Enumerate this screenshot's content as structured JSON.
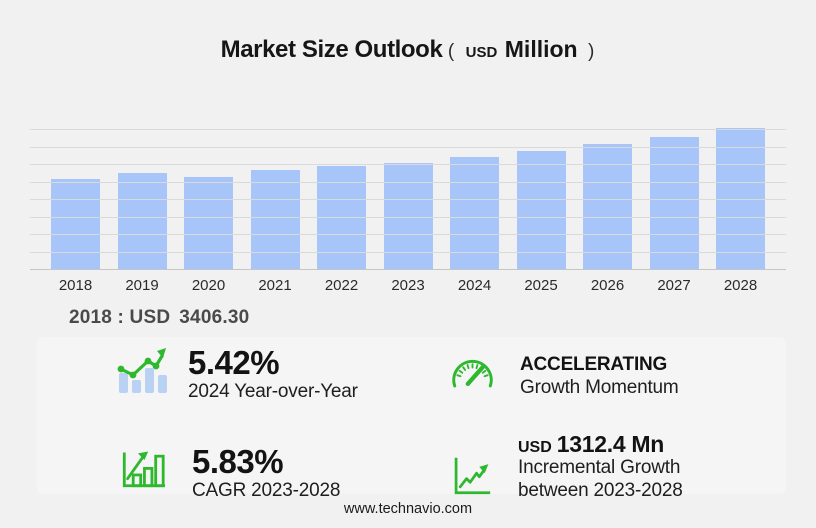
{
  "title": {
    "main": "Market Size Outlook",
    "open_paren": "(",
    "currency": "USD",
    "unit": "Million",
    "close_paren": ")"
  },
  "chart_data": {
    "type": "bar",
    "title": "Market Size Outlook (USD Million)",
    "xlabel": "",
    "ylabel": "USD Million",
    "categories": [
      "2018",
      "2019",
      "2020",
      "2021",
      "2022",
      "2023",
      "2024",
      "2025",
      "2026",
      "2027",
      "2028"
    ],
    "values": [
      3406.3,
      3600,
      3450,
      3715,
      3870,
      4005,
      4222,
      4455,
      4715,
      4990,
      5317
    ],
    "labeled_point": {
      "category": "2018",
      "value": 3406.3
    },
    "ylim": [
      0,
      5500
    ],
    "grid": true,
    "gridline_count": 8,
    "bar_color": "#a8c5fa",
    "legend": false
  },
  "selected_point": {
    "prefix": "2018 : USD",
    "value": "3406.30"
  },
  "stats": {
    "yoy": {
      "icon": "trend-bars-icon",
      "value": "5.42%",
      "label": "2024 Year-over-Year"
    },
    "momentum": {
      "icon": "speedometer-icon",
      "value": "ACCELERATING",
      "label": "Growth Momentum"
    },
    "cagr": {
      "icon": "bar-growth-icon",
      "value": "5.83%",
      "label": "CAGR 2023-2028"
    },
    "incremental": {
      "icon": "line-growth-icon",
      "currency": "USD",
      "value": "1312.4 Mn",
      "label": "Incremental Growth",
      "label2": "between 2023-2028"
    }
  },
  "footer": {
    "url": "www.technavio.com"
  },
  "colors": {
    "background": "#f1f1f2",
    "panel": "#f5f5f6",
    "bar_blue": "#a8c5fa",
    "icon_bar_blue": "#b9d2f4",
    "accent_green": "#2eb82e",
    "gridline": "#dadada",
    "axis": "#c5c5c6"
  }
}
